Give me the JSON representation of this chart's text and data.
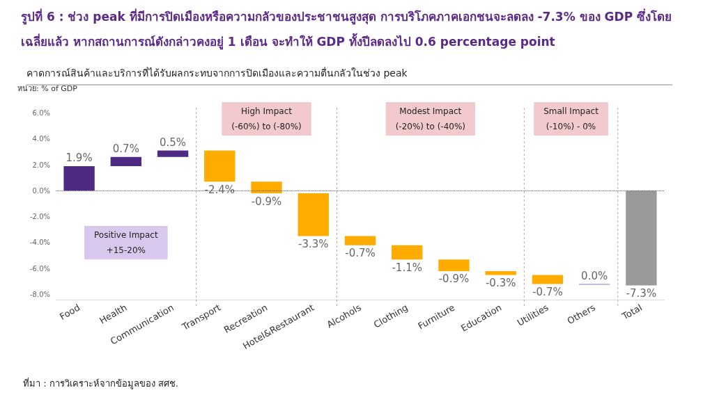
{
  "chart_data": {
    "type": "bar",
    "title": "รูปที่ 6 : ช่วง peak ที่มีการปิดเมืองหรือความกลัวของประชาชนสูงสุด การบริโภคภาคเอกชนจะลดลง -7.3% ของ GDP ซึ่งโดยเฉลี่ยแล้ว หากสถานการณ์ดังกล่าวคงอยู่ 1 เดือน จะทำให้ GDP ทั้งปีลดลงไป 0.6 percentage point",
    "subtitle": "คาดการณ์สินค้าและบริการที่ได้รับผลกระทบจากการปิดเมืองและความตื่นกลัวในช่วง  peak",
    "ylabel": "หน่วย: % of GDP",
    "annotations": [
      "ที่มา : การวิเคราะห์จากข้อมูลของ สศช."
    ],
    "categories": [
      "Food",
      "Health",
      "Communication",
      "Transport",
      "Recreation",
      "Hotel&Restaurant",
      "Alcohols",
      "Clothing",
      "Furniture",
      "Education",
      "Utilities",
      "Others",
      "Total"
    ],
    "values": [
      1.9,
      0.7,
      0.5,
      -2.4,
      -0.9,
      -3.3,
      -0.7,
      -1.1,
      -0.9,
      -0.3,
      -0.7,
      0.0,
      -7.3
    ],
    "base": [
      0,
      1.9,
      2.6,
      3.1,
      0.7,
      -0.2,
      -3.5,
      -4.2,
      -5.3,
      -6.2,
      -6.5,
      -7.2,
      0
    ],
    "colors": [
      "#4e2a84",
      "#4e2a84",
      "#4e2a84",
      "#ffab00",
      "#ffab00",
      "#ffab00",
      "#ffab00",
      "#ffab00",
      "#ffab00",
      "#ffab00",
      "#ffab00",
      "#8a80c4",
      "#999999"
    ],
    "value_labels": [
      "1.9%",
      "0.7%",
      "0.5%",
      "-2.4%",
      "-0.9%",
      "-3.3%",
      "-0.7%",
      "-1.1%",
      "-0.9%",
      "-0.3%",
      "-0.7%",
      "0.0%",
      "-7.3%"
    ],
    "ylim": [
      -8.4,
      6.4
    ],
    "yticks": [
      {
        "value": -8,
        "label": "-8.0%"
      },
      {
        "value": -6,
        "label": "-6.0%"
      },
      {
        "value": -4,
        "label": "-4.0%"
      },
      {
        "value": -2,
        "label": "-2.0%"
      },
      {
        "value": 0,
        "label": "0.0%"
      },
      {
        "value": 2,
        "label": "2.0%"
      },
      {
        "value": 4,
        "label": "4.0%"
      },
      {
        "value": 6,
        "label": "6.0%"
      }
    ],
    "ref_lines": [
      {
        "axis": "y",
        "value": 0,
        "line_style": "dotted",
        "color": "#555555"
      }
    ],
    "bands": [
      {
        "axis": "x",
        "from": "Food",
        "to": "Communication",
        "label": "Positive Impact\n+15-20%",
        "color": "#d9c8ee"
      },
      {
        "axis": "x",
        "from": "Transport",
        "to": "Hotel&Restaurant",
        "label": "High Impact\n(-60%) to (-80%)",
        "color": "#f2c9cc"
      },
      {
        "axis": "x",
        "from": "Alcohols",
        "to": "Education",
        "label": "Modest Impact\n(-20%) to (-40%)",
        "color": "#f2c9cc"
      },
      {
        "axis": "x",
        "from": "Utilities",
        "to": "Others",
        "label": "Small Impact\n(-10%) - 0%",
        "color": "#f2c9cc"
      }
    ],
    "grid": false
  }
}
